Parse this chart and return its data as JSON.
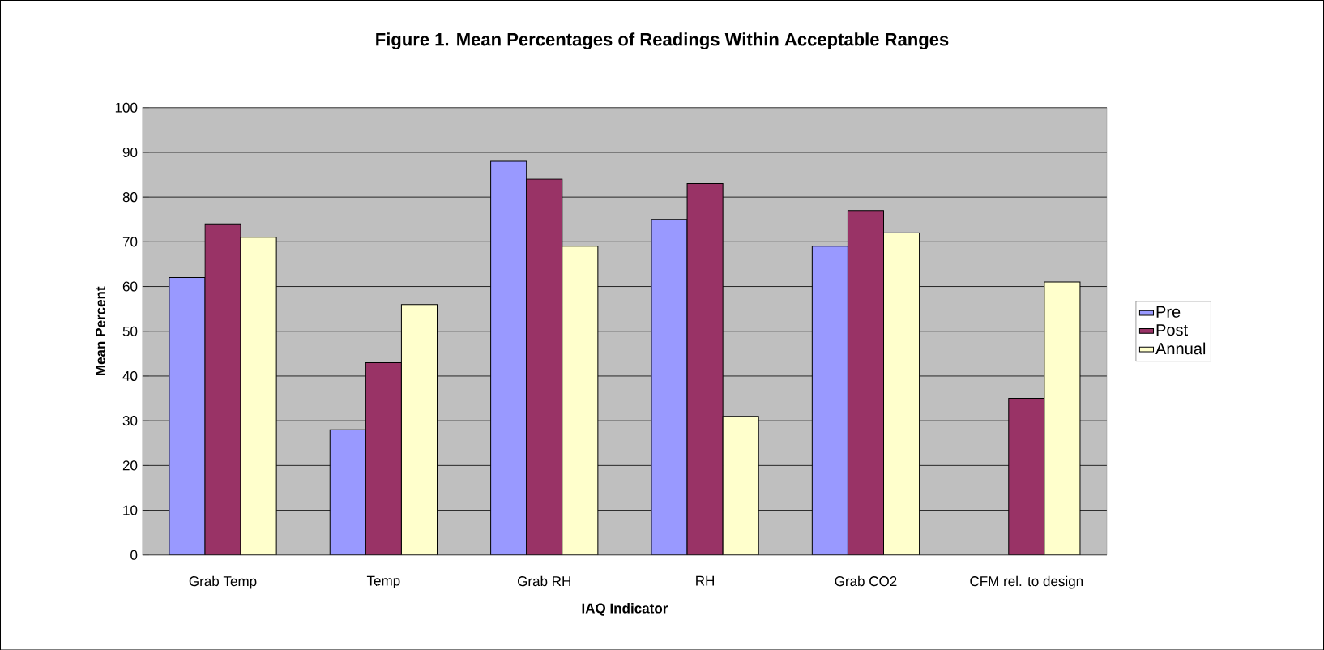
{
  "chart_data": {
    "type": "bar",
    "title": "Figure 1. Mean Percentages of Readings Within Acceptable Ranges",
    "xlabel": "IAQ Indicator",
    "ylabel": "Mean Percent",
    "categories": [
      "Grab Temp",
      "Temp",
      "Grab RH",
      "RH",
      "Grab CO2",
      "CFM rel. to design"
    ],
    "series": [
      {
        "name": "Pre",
        "color": "#9999ff",
        "values": [
          62,
          28,
          88,
          75,
          69,
          null
        ]
      },
      {
        "name": "Post",
        "color": "#993366",
        "values": [
          74,
          43,
          84,
          83,
          77,
          35
        ]
      },
      {
        "name": "Annual",
        "color": "#ffffcc",
        "values": [
          71,
          56,
          69,
          31,
          72,
          61
        ]
      }
    ],
    "ylim": [
      0,
      100
    ],
    "yticks": [
      0,
      10,
      20,
      30,
      40,
      50,
      60,
      70,
      80,
      90,
      100
    ],
    "grid": "y",
    "legend": "right"
  }
}
